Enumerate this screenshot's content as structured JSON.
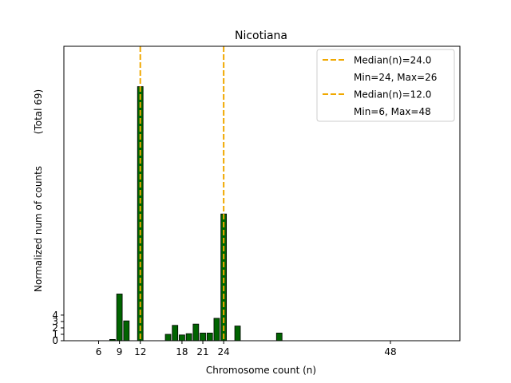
{
  "chart_data": {
    "type": "bar",
    "title": "Nicotiana",
    "xlabel": "Chromosome count (n)",
    "ylabel": "Normalized num of counts",
    "ylabel_note": "(Total 69)",
    "x_ticks": [
      6,
      9,
      12,
      18,
      21,
      24,
      48
    ],
    "y_ticks": [
      0,
      1,
      2,
      3,
      4
    ],
    "xlim": [
      1,
      58
    ],
    "ylim": [
      0,
      46
    ],
    "bars": [
      {
        "x": 8,
        "value": 0.2
      },
      {
        "x": 9,
        "value": 7.3
      },
      {
        "x": 10,
        "value": 3.1
      },
      {
        "x": 12,
        "value": 39.7
      },
      {
        "x": 16,
        "value": 1.0
      },
      {
        "x": 17,
        "value": 2.4
      },
      {
        "x": 18,
        "value": 0.9
      },
      {
        "x": 19,
        "value": 1.1
      },
      {
        "x": 20,
        "value": 2.6
      },
      {
        "x": 21,
        "value": 1.2
      },
      {
        "x": 22,
        "value": 1.2
      },
      {
        "x": 23,
        "value": 3.5
      },
      {
        "x": 24,
        "value": 19.8
      },
      {
        "x": 26,
        "value": 2.3
      },
      {
        "x": 32,
        "value": 1.2
      }
    ],
    "bar_color": "#006400",
    "median_lines": [
      {
        "x": 12,
        "label": "Median(n)=12.0",
        "range_label": "Min=6, Max=48"
      },
      {
        "x": 24,
        "label": "Median(n)=24.0",
        "range_label": "Min=24, Max=26"
      }
    ],
    "median_color": "#f0a800",
    "legend_entries": [
      {
        "label": "Median(n)=24.0",
        "marker": "dashed-line"
      },
      {
        "label": "Min=24, Max=26",
        "marker": "none"
      },
      {
        "label": "Median(n)=12.0",
        "marker": "dashed-line"
      },
      {
        "label": "Min=6, Max=48",
        "marker": "none"
      }
    ],
    "legend_position": "top-right",
    "grid": false
  }
}
